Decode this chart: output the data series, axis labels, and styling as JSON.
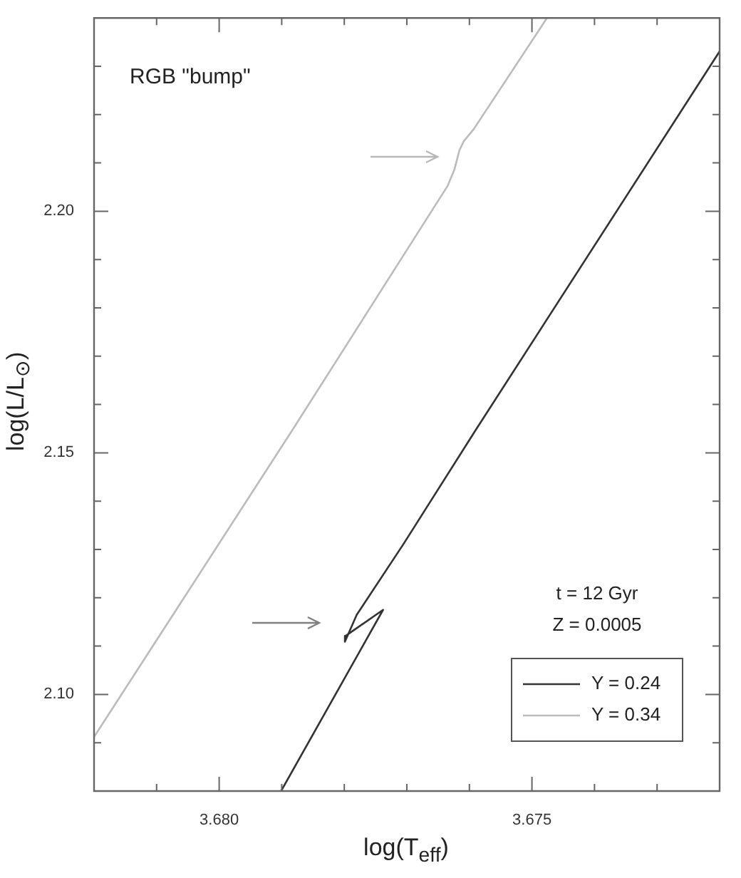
{
  "chart_data": {
    "type": "line",
    "xlabel": "log(T$_{eff}$)",
    "ylabel": "log(L/L$_{⊙}$)",
    "annotations": [
      "RGB \"bump\"",
      "t = 12 Gyr",
      "Z = 0.0005"
    ],
    "series": [
      {
        "name": "Y = 0.24",
        "color": "#333333",
        "x": [
          3.67901,
          3.67738,
          3.67798,
          3.67799,
          3.6778,
          3.67705,
          3.6759,
          3.672
        ],
        "values": [
          2.08,
          2.1175,
          2.1121,
          2.1109,
          2.1165,
          2.1312,
          2.1547,
          2.2331
        ]
      },
      {
        "name": "Y = 0.34",
        "color": "#bbbbbb",
        "x": [
          3.682,
          3.67883,
          3.67635,
          3.67624,
          3.67616,
          3.67609,
          3.67593,
          3.67476
        ],
        "values": [
          2.0912,
          2.1547,
          2.2052,
          2.2086,
          2.2126,
          2.2145,
          2.217,
          2.24
        ]
      }
    ],
    "marker": "none",
    "line_style": "solid",
    "legend": "bottom right",
    "xlim": [
      3.682,
      3.672
    ],
    "ylim": [
      2.08,
      2.24
    ],
    "xticks": [
      {
        "value": 3.681,
        "label": null
      },
      {
        "value": 3.68,
        "label": "3.680"
      },
      {
        "value": 3.679,
        "label": null
      },
      {
        "value": 3.678,
        "label": null
      },
      {
        "value": 3.677,
        "label": null
      },
      {
        "value": 3.676,
        "label": null
      },
      {
        "value": 3.675,
        "label": "3.675"
      },
      {
        "value": 3.674,
        "label": null
      },
      {
        "value": 3.673,
        "label": null
      }
    ],
    "yticks": [
      {
        "value": 2.09,
        "label": null
      },
      {
        "value": 2.1,
        "label": "2.10"
      },
      {
        "value": 2.11,
        "label": null
      },
      {
        "value": 2.12,
        "label": null
      },
      {
        "value": 2.13,
        "label": null
      },
      {
        "value": 2.14,
        "label": null
      },
      2.15,
      {
        "value": 2.16,
        "label": null
      },
      {
        "value": 2.17,
        "label": null
      },
      {
        "value": 2.18,
        "label": null
      },
      {
        "value": 2.19,
        "label": null
      },
      {
        "value": 2.2,
        "label": "2.20"
      },
      {
        "value": 2.21,
        "label": null
      },
      {
        "value": 2.22,
        "label": null
      },
      {
        "value": 2.23,
        "label": null
      }
    ]
  }
}
